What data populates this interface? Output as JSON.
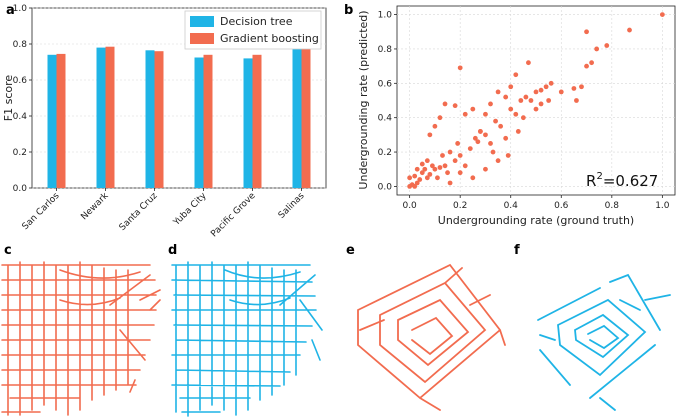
{
  "panels": {
    "a": "a",
    "b": "b",
    "c": "c",
    "d": "d",
    "e": "e",
    "f": "f"
  },
  "colors": {
    "decision_tree": "#1fb4e6",
    "gradient_boosting": "#f26c4f",
    "grid": "#d8d8d8"
  },
  "chart_data": [
    {
      "id": "a",
      "type": "bar",
      "title": "",
      "xlabel": "",
      "ylabel": "F1 score",
      "ylim": [
        0,
        1.0
      ],
      "yticks": [
        "0.0",
        "0.2",
        "0.4",
        "0.6",
        "0.8",
        "1.0"
      ],
      "categories": [
        "San Carlos",
        "Newark",
        "Santa Cruz",
        "Yuba City",
        "Pacific Grove",
        "Salinas"
      ],
      "series": [
        {
          "name": "Decision tree",
          "values": [
            0.74,
            0.78,
            0.765,
            0.725,
            0.72,
            0.825
          ]
        },
        {
          "name": "Gradient boosting",
          "values": [
            0.745,
            0.785,
            0.76,
            0.74,
            0.74,
            0.83
          ]
        }
      ],
      "legend": "top-right"
    },
    {
      "id": "b",
      "type": "scatter",
      "xlabel": "Undergrounding rate (ground truth)",
      "ylabel": "Undergrounding rate (predicted)",
      "xlim": [
        -0.05,
        1.05
      ],
      "ylim": [
        -0.05,
        1.05
      ],
      "xticks": [
        "0.0",
        "0.2",
        "0.4",
        "0.6",
        "0.8",
        "1.0"
      ],
      "yticks": [
        "0.0",
        "0.2",
        "0.4",
        "0.6",
        "0.8",
        "1.0"
      ],
      "annotation": {
        "base": "R",
        "sup": "2",
        "rest": "=0.627"
      },
      "points": [
        [
          0.0,
          0.0
        ],
        [
          0.01,
          0.01
        ],
        [
          0.02,
          0.0
        ],
        [
          0.03,
          0.02
        ],
        [
          0.0,
          0.05
        ],
        [
          0.02,
          0.06
        ],
        [
          0.04,
          0.04
        ],
        [
          0.05,
          0.08
        ],
        [
          0.06,
          0.1
        ],
        [
          0.07,
          0.05
        ],
        [
          0.08,
          0.07
        ],
        [
          0.05,
          0.13
        ],
        [
          0.09,
          0.12
        ],
        [
          0.1,
          0.1
        ],
        [
          0.12,
          0.11
        ],
        [
          0.14,
          0.12
        ],
        [
          0.15,
          0.08
        ],
        [
          0.13,
          0.18
        ],
        [
          0.16,
          0.2
        ],
        [
          0.18,
          0.15
        ],
        [
          0.2,
          0.18
        ],
        [
          0.22,
          0.12
        ],
        [
          0.24,
          0.22
        ],
        [
          0.26,
          0.28
        ],
        [
          0.28,
          0.32
        ],
        [
          0.3,
          0.3
        ],
        [
          0.32,
          0.25
        ],
        [
          0.34,
          0.38
        ],
        [
          0.36,
          0.35
        ],
        [
          0.38,
          0.28
        ],
        [
          0.4,
          0.45
        ],
        [
          0.42,
          0.42
        ],
        [
          0.44,
          0.5
        ],
        [
          0.45,
          0.4
        ],
        [
          0.46,
          0.52
        ],
        [
          0.48,
          0.5
        ],
        [
          0.5,
          0.55
        ],
        [
          0.52,
          0.48
        ],
        [
          0.54,
          0.58
        ],
        [
          0.56,
          0.6
        ],
        [
          0.08,
          0.3
        ],
        [
          0.1,
          0.35
        ],
        [
          0.12,
          0.4
        ],
        [
          0.14,
          0.48
        ],
        [
          0.18,
          0.47
        ],
        [
          0.2,
          0.69
        ],
        [
          0.22,
          0.42
        ],
        [
          0.25,
          0.45
        ],
        [
          0.28,
          0.32
        ],
        [
          0.3,
          0.42
        ],
        [
          0.32,
          0.48
        ],
        [
          0.35,
          0.55
        ],
        [
          0.38,
          0.52
        ],
        [
          0.4,
          0.58
        ],
        [
          0.42,
          0.65
        ],
        [
          0.47,
          0.72
        ],
        [
          0.5,
          0.45
        ],
        [
          0.52,
          0.56
        ],
        [
          0.55,
          0.5
        ],
        [
          0.6,
          0.55
        ],
        [
          0.65,
          0.57
        ],
        [
          0.66,
          0.5
        ],
        [
          0.68,
          0.58
        ],
        [
          0.7,
          0.7
        ],
        [
          0.72,
          0.72
        ],
        [
          0.74,
          0.8
        ],
        [
          0.7,
          0.9
        ],
        [
          0.78,
          0.82
        ],
        [
          0.87,
          0.91
        ],
        [
          1.0,
          1.0
        ],
        [
          0.25,
          0.05
        ],
        [
          0.3,
          0.1
        ],
        [
          0.35,
          0.15
        ],
        [
          0.2,
          0.08
        ],
        [
          0.16,
          0.02
        ],
        [
          0.11,
          0.05
        ],
        [
          0.03,
          0.1
        ],
        [
          0.07,
          0.15
        ],
        [
          0.19,
          0.25
        ],
        [
          0.33,
          0.2
        ],
        [
          0.43,
          0.32
        ],
        [
          0.39,
          0.18
        ],
        [
          0.27,
          0.26
        ]
      ]
    }
  ]
}
